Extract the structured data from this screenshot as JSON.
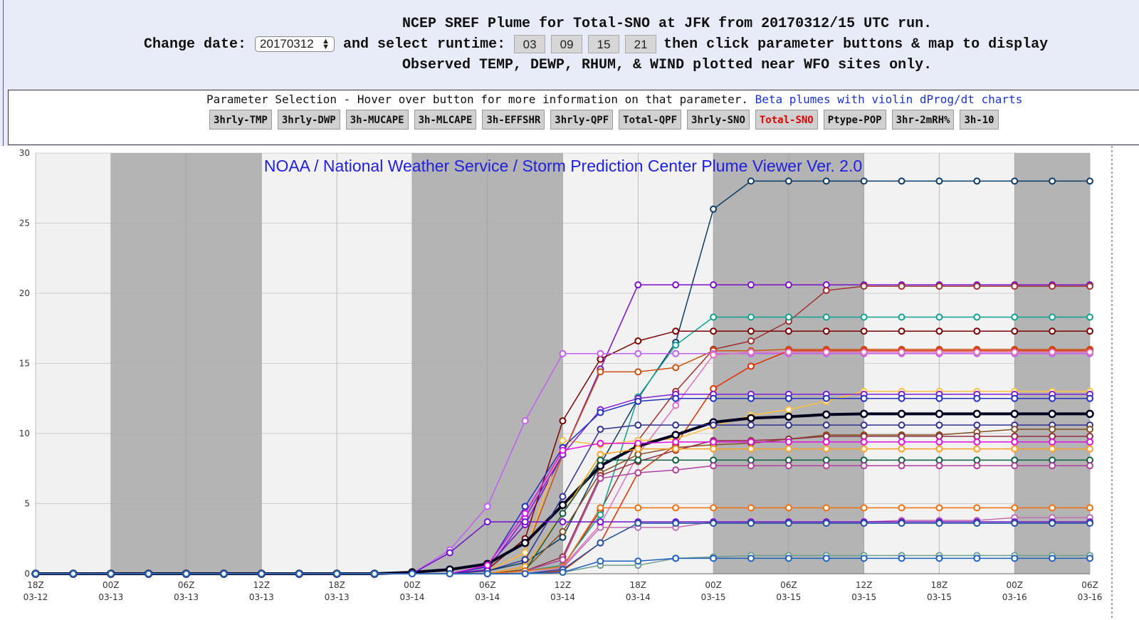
{
  "header": {
    "line1": "NCEP SREF Plume for Total-SNO at JFK from 20170312/15 UTC run.",
    "change_date_label": "Change date:",
    "date_value": "20170312",
    "select_runtime_label": "and select runtime:",
    "runtimes": [
      "03",
      "09",
      "15",
      "21"
    ],
    "after_runtime_text": "then click parameter buttons & map to display",
    "line3": "Observed TEMP, DEWP, RHUM, & WIND plotted near WFO sites only."
  },
  "params": {
    "title": "Parameter Selection - Hover over button for more information on that parameter.",
    "beta_link": "Beta plumes with violin dProg/dt charts",
    "buttons": [
      "3hrly-TMP",
      "3hrly-DWP",
      "3h-MUCAPE",
      "3h-MLCAPE",
      "3h-EFFSHR",
      "3hrly-QPF",
      "Total-QPF",
      "3hrly-SNO",
      "Total-SNO",
      "Ptype-POP",
      "3hr-2mRH%",
      "3h-10"
    ],
    "active": "Total-SNO",
    "active_color": "#e00000"
  },
  "chart_data": {
    "type": "line",
    "title": "NOAA / National Weather Service / Storm Prediction Center Plume Viewer Ver. 2.0",
    "xlabel": "",
    "ylabel": "",
    "ylim": [
      0,
      30
    ],
    "yticks": [
      0,
      5,
      10,
      15,
      20,
      25,
      30
    ],
    "x": [
      "18Z 03-12",
      "21Z 03-12",
      "00Z 03-13",
      "03Z 03-13",
      "06Z 03-13",
      "09Z 03-13",
      "12Z 03-13",
      "15Z 03-13",
      "18Z 03-13",
      "21Z 03-13",
      "00Z 03-14",
      "03Z 03-14",
      "06Z 03-14",
      "09Z 03-14",
      "12Z 03-14",
      "15Z 03-14",
      "18Z 03-14",
      "21Z 03-14",
      "00Z 03-15",
      "03Z 03-15",
      "06Z 03-15",
      "09Z 03-15",
      "12Z 03-15",
      "15Z 03-15",
      "18Z 03-15",
      "21Z 03-15",
      "00Z 03-16",
      "03Z 03-16",
      "06Z 03-16"
    ],
    "xtick_labels": [
      {
        "time": "18Z",
        "date": "03-12"
      },
      {
        "time": "00Z",
        "date": "03-13"
      },
      {
        "time": "06Z",
        "date": "03-13"
      },
      {
        "time": "12Z",
        "date": "03-13"
      },
      {
        "time": "18Z",
        "date": "03-13"
      },
      {
        "time": "00Z",
        "date": "03-14"
      },
      {
        "time": "06Z",
        "date": "03-14"
      },
      {
        "time": "12Z",
        "date": "03-14"
      },
      {
        "time": "18Z",
        "date": "03-14"
      },
      {
        "time": "00Z",
        "date": "03-15"
      },
      {
        "time": "06Z",
        "date": "03-15"
      },
      {
        "time": "12Z",
        "date": "03-15"
      },
      {
        "time": "18Z",
        "date": "03-15"
      },
      {
        "time": "00Z",
        "date": "03-16"
      },
      {
        "time": "06Z",
        "date": "03-16"
      }
    ],
    "night_bands_colors": {
      "dark": "#b4b4b4",
      "light": "#e4e4e4"
    },
    "grid": true,
    "legend": "none",
    "series": [
      {
        "color": "#0a3c64",
        "width": 1.5,
        "values": [
          0,
          0,
          0,
          0,
          0,
          0,
          0,
          0,
          0,
          0,
          0,
          0,
          0.2,
          0.8,
          2.6,
          7.8,
          12.5,
          16.5,
          26,
          28,
          28,
          28,
          28,
          28,
          28,
          28,
          28,
          28,
          28
        ]
      },
      {
        "color": "#7a10c8",
        "width": 1.5,
        "values": [
          0,
          0,
          0,
          0,
          0,
          0,
          0,
          0,
          0,
          0,
          0,
          0,
          0.5,
          3.5,
          8.5,
          14.6,
          20.6,
          20.6,
          20.6,
          20.6,
          20.6,
          20.6,
          20.6,
          20.6,
          20.6,
          20.6,
          20.6,
          20.6,
          20.6
        ]
      },
      {
        "color": "#a03030",
        "width": 1.5,
        "values": [
          0,
          0,
          0,
          0,
          0,
          0,
          0,
          0,
          0,
          0,
          0,
          0,
          0,
          0.2,
          0.5,
          4.5,
          9.5,
          13,
          16,
          16.6,
          18,
          20.2,
          20.5,
          20.5,
          20.5,
          20.5,
          20.5,
          20.5,
          20.5
        ]
      },
      {
        "color": "#10a090",
        "width": 1.5,
        "values": [
          0,
          0,
          0,
          0,
          0,
          0,
          0,
          0,
          0,
          0,
          0,
          0,
          0,
          0.2,
          0.6,
          4.2,
          12.6,
          16.3,
          18.3,
          18.3,
          18.3,
          18.3,
          18.3,
          18.3,
          18.3,
          18.3,
          18.3,
          18.3,
          18.3
        ]
      },
      {
        "color": "#7a0000",
        "width": 1.5,
        "values": [
          0,
          0,
          0,
          0,
          0,
          0,
          0,
          0,
          0,
          0,
          0,
          0,
          0.3,
          2.5,
          10.9,
          15.3,
          16.6,
          17.3,
          17.3,
          17.3,
          17.3,
          17.3,
          17.3,
          17.3,
          17.3,
          17.3,
          17.3,
          17.3,
          17.3
        ]
      },
      {
        "color": "#cc5010",
        "width": 1.5,
        "values": [
          0,
          0,
          0,
          0,
          0,
          0,
          0,
          0,
          0,
          0,
          0,
          0,
          0.2,
          1.5,
          8.5,
          14.4,
          14.4,
          14.7,
          15.9,
          15.9,
          16,
          16,
          16,
          16,
          16,
          16,
          16,
          16,
          16
        ]
      },
      {
        "color": "#c060f0",
        "width": 1.5,
        "values": [
          0,
          0,
          0,
          0,
          0,
          0,
          0,
          0,
          0,
          0,
          0,
          1.7,
          4.8,
          10.9,
          15.7,
          15.7,
          15.7,
          15.7,
          15.7,
          15.7,
          15.7,
          15.7,
          15.7,
          15.7,
          15.7,
          15.7,
          15.7,
          15.7,
          15.7
        ]
      },
      {
        "color": "#e03000",
        "width": 1.5,
        "values": [
          0,
          0,
          0,
          0,
          0,
          0,
          0,
          0,
          0,
          0,
          0,
          0,
          0,
          0,
          0.2,
          2.2,
          7.2,
          9.2,
          13.2,
          14.8,
          15.9,
          15.9,
          15.9,
          15.9,
          15.9,
          15.9,
          15.9,
          15.9,
          15.9
        ]
      },
      {
        "color": "#e070c0",
        "width": 1.5,
        "values": [
          0,
          0,
          0,
          0,
          0,
          0,
          0,
          0,
          0,
          0,
          0,
          0,
          0,
          0.2,
          0.5,
          3.5,
          8.5,
          12,
          15.6,
          15.8,
          15.8,
          15.8,
          15.8,
          15.8,
          15.8,
          15.8,
          15.8,
          15.8,
          15.8
        ]
      },
      {
        "color": "#ffc040",
        "width": 1.5,
        "values": [
          0,
          0,
          0,
          0,
          0,
          0,
          0,
          0,
          0,
          0,
          0,
          0,
          0.2,
          1.5,
          9.5,
          9.2,
          9.5,
          9.6,
          10.5,
          11.3,
          11.7,
          12.3,
          13,
          13,
          13,
          13,
          13,
          13,
          13
        ]
      },
      {
        "color": "#8020d0",
        "width": 1.5,
        "values": [
          0,
          0,
          0,
          0,
          0,
          0,
          0,
          0,
          0,
          0,
          0,
          0,
          0.3,
          4,
          8.5,
          11.7,
          12.5,
          12.8,
          12.8,
          12.8,
          12.8,
          12.8,
          12.8,
          12.8,
          12.8,
          12.8,
          12.8,
          12.8,
          12.8
        ]
      },
      {
        "color": "#2030c0",
        "width": 1.5,
        "values": [
          0,
          0,
          0,
          0,
          0,
          0,
          0,
          0,
          0,
          0,
          0,
          0,
          0.5,
          4.8,
          9,
          11.5,
          12.3,
          12.5,
          12.5,
          12.5,
          12.5,
          12.5,
          12.5,
          12.5,
          12.5,
          12.5,
          12.5,
          12.5,
          12.5
        ]
      },
      {
        "color": "#000020",
        "width": 4,
        "values": [
          0,
          0,
          0,
          0,
          0,
          0,
          0,
          0,
          0,
          0,
          0.1,
          0.3,
          0.7,
          2.2,
          4.9,
          7.7,
          9.1,
          9.9,
          10.8,
          11.1,
          11.2,
          11.35,
          11.4,
          11.4,
          11.4,
          11.4,
          11.4,
          11.4,
          11.4
        ]
      },
      {
        "color": "#303090",
        "width": 1.5,
        "values": [
          0,
          0,
          0,
          0,
          0,
          0,
          0,
          0,
          0,
          0,
          0,
          0,
          0.2,
          1,
          5.5,
          10.3,
          10.6,
          10.6,
          10.6,
          10.6,
          10.6,
          10.6,
          10.6,
          10.6,
          10.6,
          10.6,
          10.6,
          10.6,
          10.6
        ]
      },
      {
        "color": "#805020",
        "width": 1.5,
        "values": [
          0,
          0,
          0,
          0,
          0,
          0,
          0,
          0,
          0,
          0,
          0,
          0,
          0,
          0.3,
          3,
          7.2,
          8.5,
          9,
          9.2,
          9.3,
          9.6,
          9.9,
          9.9,
          9.9,
          9.9,
          10.1,
          10.3,
          10.3,
          10.3
        ]
      },
      {
        "color": "#903040",
        "width": 1.5,
        "values": [
          0,
          0,
          0,
          0,
          0,
          0,
          0,
          0,
          0,
          0,
          0,
          0,
          0,
          0.2,
          1.2,
          7,
          8,
          8.8,
          9.5,
          9.5,
          9.6,
          9.8,
          9.8,
          9.8,
          9.8,
          9.8,
          9.8,
          9.8,
          9.8
        ]
      },
      {
        "color": "#e010e0",
        "width": 1.5,
        "values": [
          0,
          0,
          0,
          0,
          0,
          0,
          0,
          0,
          0,
          0,
          0,
          0,
          0.6,
          4.3,
          8.8,
          9.3,
          9.3,
          9.4,
          9.4,
          9.4,
          9.4,
          9.4,
          9.4,
          9.4,
          9.4,
          9.4,
          9.4,
          9.4,
          9.4
        ]
      },
      {
        "color": "#ffa020",
        "width": 1.5,
        "values": [
          0,
          0,
          0,
          0,
          0,
          0,
          0,
          0,
          0,
          0,
          0,
          0,
          0,
          0.5,
          4.3,
          8.5,
          8.9,
          8.9,
          8.9,
          8.9,
          8.9,
          8.9,
          8.9,
          8.9,
          8.9,
          8.9,
          8.9,
          8.9,
          8.9
        ]
      },
      {
        "color": "#106040",
        "width": 1.5,
        "values": [
          0,
          0,
          0,
          0,
          0,
          0,
          0,
          0,
          0,
          0,
          0,
          0,
          0,
          0.2,
          4.3,
          8.1,
          8.1,
          8.1,
          8.1,
          8.1,
          8.1,
          8.1,
          8.1,
          8.1,
          8.1,
          8.1,
          8.1,
          8.1,
          8.1
        ]
      },
      {
        "color": "#b040a0",
        "width": 1.5,
        "values": [
          0,
          0,
          0,
          0,
          0,
          0,
          0,
          0,
          0,
          0,
          0,
          0,
          0,
          0.2,
          1,
          6.8,
          7.2,
          7.4,
          7.7,
          7.7,
          7.7,
          7.7,
          7.7,
          7.7,
          7.7,
          7.7,
          7.7,
          7.7,
          7.7
        ]
      },
      {
        "color": "#f07010",
        "width": 1.5,
        "values": [
          0,
          0,
          0,
          0,
          0,
          0,
          0,
          0,
          0,
          0,
          0,
          0,
          0,
          0.2,
          0.5,
          4.7,
          4.7,
          4.7,
          4.7,
          4.7,
          4.7,
          4.7,
          4.7,
          4.7,
          4.7,
          4.7,
          4.7,
          4.7,
          4.7
        ]
      },
      {
        "color": "#c070b0",
        "width": 1.5,
        "values": [
          0,
          0,
          0,
          0,
          0,
          0,
          0,
          0,
          0,
          0,
          0,
          0,
          0,
          0,
          0.4,
          3.3,
          3.3,
          3.3,
          3.7,
          3.7,
          3.7,
          3.7,
          3.7,
          3.8,
          3.8,
          3.8,
          4,
          4,
          4
        ]
      },
      {
        "color": "#7010d0",
        "width": 1.5,
        "values": [
          0,
          0,
          0,
          0,
          0,
          0,
          0,
          0,
          0,
          0,
          0,
          1.5,
          3.7,
          3.7,
          3.7,
          3.7,
          3.7,
          3.7,
          3.7,
          3.7,
          3.7,
          3.7,
          3.7,
          3.7,
          3.7,
          3.7,
          3.7,
          3.7,
          3.7
        ]
      },
      {
        "color": "#2050a0",
        "width": 1.5,
        "values": [
          0,
          0,
          0,
          0,
          0,
          0,
          0,
          0,
          0,
          0,
          0,
          0,
          0,
          0,
          0.3,
          2.2,
          3.6,
          3.6,
          3.6,
          3.6,
          3.6,
          3.6,
          3.6,
          3.6,
          3.6,
          3.6,
          3.6,
          3.6,
          3.6
        ]
      },
      {
        "color": "#70a090",
        "width": 1.5,
        "values": [
          0,
          0,
          0,
          0,
          0,
          0,
          0,
          0,
          0,
          0,
          0,
          0,
          0,
          0,
          0.1,
          0.6,
          0.6,
          1.1,
          1.2,
          1.3,
          1.3,
          1.3,
          1.3,
          1.3,
          1.3,
          1.3,
          1.3,
          1.3,
          1.3
        ]
      },
      {
        "color": "#2060c0",
        "width": 1.5,
        "values": [
          0,
          0,
          0,
          0,
          0,
          0,
          0,
          0,
          0,
          0,
          0,
          0,
          0,
          0,
          0.1,
          0.9,
          0.9,
          1.1,
          1.1,
          1.1,
          1.1,
          1.1,
          1.1,
          1.1,
          1.1,
          1.1,
          1.1,
          1.1,
          1.1
        ]
      }
    ]
  }
}
